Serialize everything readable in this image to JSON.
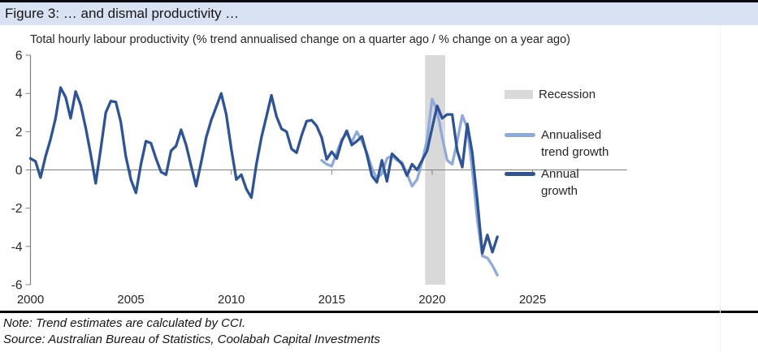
{
  "header": {
    "title": "Figure 3: … and dismal productivity …"
  },
  "notes": {
    "note": "Note: Trend estimates are calculated by CCI.",
    "source": "Source: Australian Bureau of Statistics, Coolabah Capital Investments"
  },
  "colors": {
    "header_bg": "#D9E2F3",
    "rule_black": "#06070f",
    "axis_gray": "#808080",
    "tick_text": "#262626",
    "trend_blue": "#8EAADB",
    "annual_blue": "#2F5496",
    "recession_gray": "#D9D9D9"
  },
  "chart_data": {
    "type": "line",
    "title": "",
    "subtitle": "Total hourly labour productivity (% trend annualised change on a quarter ago / % change on a year ago)",
    "xlabel": "",
    "ylabel": "",
    "ylim": [
      -6,
      6
    ],
    "xlim": [
      2000,
      2029.7
    ],
    "y_ticks": [
      6,
      4,
      2,
      0,
      -2,
      -4,
      -6
    ],
    "x_ticks": [
      2000,
      2005,
      2010,
      2015,
      2020,
      2025
    ],
    "grid": "zero-line-only",
    "recession_band": {
      "start": 2019.65,
      "end": 2020.65,
      "color": "#D9D9D9"
    },
    "legend": {
      "position": "inside-right",
      "items": [
        {
          "label": "Recession",
          "lines": [
            "Recession"
          ],
          "swatch": "band",
          "color": "#D9D9D9"
        },
        {
          "label": "Annualised trend growth",
          "lines": [
            "Annualised",
            "trend growth"
          ],
          "swatch": "line",
          "color": "#8EAADB"
        },
        {
          "label": "Annual growth",
          "lines": [
            "Annual",
            "growth"
          ],
          "swatch": "line",
          "color": "#2F5496"
        }
      ]
    },
    "series": [
      {
        "name": "Annualised trend growth",
        "color": "#8EAADB",
        "points": [
          [
            2014.5,
            0.5
          ],
          [
            2014.75,
            0.3
          ],
          [
            2015.0,
            0.2
          ],
          [
            2015.25,
            0.9
          ],
          [
            2015.5,
            1.6
          ],
          [
            2015.75,
            1.9
          ],
          [
            2016.0,
            1.45
          ],
          [
            2016.25,
            2.0
          ],
          [
            2016.5,
            1.5
          ],
          [
            2016.75,
            0.9
          ],
          [
            2017.0,
            0.1
          ],
          [
            2017.25,
            -0.45
          ],
          [
            2017.5,
            -0.2
          ],
          [
            2017.75,
            0.6
          ],
          [
            2018.0,
            0.75
          ],
          [
            2018.25,
            0.5
          ],
          [
            2018.5,
            0.4
          ],
          [
            2018.75,
            -0.2
          ],
          [
            2019.0,
            -0.85
          ],
          [
            2019.25,
            -0.5
          ],
          [
            2019.5,
            0.4
          ],
          [
            2019.75,
            1.6
          ],
          [
            2020.0,
            3.7
          ],
          [
            2020.25,
            3.1
          ],
          [
            2020.5,
            1.7
          ],
          [
            2020.75,
            0.5
          ],
          [
            2021.0,
            0.3
          ],
          [
            2021.25,
            1.5
          ],
          [
            2021.5,
            2.85
          ],
          [
            2021.75,
            2.2
          ],
          [
            2022.0,
            0.0
          ],
          [
            2022.25,
            -2.6
          ],
          [
            2022.5,
            -4.5
          ],
          [
            2022.75,
            -4.6
          ],
          [
            2023.0,
            -5.0
          ],
          [
            2023.25,
            -5.5
          ]
        ]
      },
      {
        "name": "Annual growth",
        "color": "#2F5496",
        "points": [
          [
            2000.0,
            0.6
          ],
          [
            2000.25,
            0.45
          ],
          [
            2000.5,
            -0.4
          ],
          [
            2000.75,
            0.7
          ],
          [
            2001.0,
            1.6
          ],
          [
            2001.25,
            2.7
          ],
          [
            2001.5,
            4.3
          ],
          [
            2001.75,
            3.8
          ],
          [
            2002.0,
            2.7
          ],
          [
            2002.25,
            4.1
          ],
          [
            2002.5,
            3.4
          ],
          [
            2002.75,
            2.2
          ],
          [
            2003.0,
            0.8
          ],
          [
            2003.25,
            -0.7
          ],
          [
            2003.5,
            1.1
          ],
          [
            2003.75,
            3.0
          ],
          [
            2004.0,
            3.6
          ],
          [
            2004.25,
            3.55
          ],
          [
            2004.5,
            2.5
          ],
          [
            2004.75,
            0.7
          ],
          [
            2005.0,
            -0.5
          ],
          [
            2005.25,
            -1.2
          ],
          [
            2005.5,
            0.3
          ],
          [
            2005.75,
            1.5
          ],
          [
            2006.0,
            1.4
          ],
          [
            2006.25,
            0.6
          ],
          [
            2006.5,
            -0.1
          ],
          [
            2006.75,
            -0.25
          ],
          [
            2007.0,
            1.0
          ],
          [
            2007.25,
            1.25
          ],
          [
            2007.5,
            2.1
          ],
          [
            2007.75,
            1.3
          ],
          [
            2008.0,
            0.2
          ],
          [
            2008.25,
            -0.85
          ],
          [
            2008.5,
            0.4
          ],
          [
            2008.75,
            1.7
          ],
          [
            2009.0,
            2.6
          ],
          [
            2009.25,
            3.3
          ],
          [
            2009.5,
            4.0
          ],
          [
            2009.75,
            2.9
          ],
          [
            2010.0,
            1.1
          ],
          [
            2010.25,
            -0.5
          ],
          [
            2010.5,
            -0.25
          ],
          [
            2010.75,
            -1.0
          ],
          [
            2011.0,
            -1.45
          ],
          [
            2011.25,
            0.3
          ],
          [
            2011.5,
            1.7
          ],
          [
            2011.75,
            2.8
          ],
          [
            2012.0,
            3.9
          ],
          [
            2012.25,
            2.8
          ],
          [
            2012.5,
            2.15
          ],
          [
            2012.75,
            2.0
          ],
          [
            2013.0,
            1.1
          ],
          [
            2013.25,
            0.9
          ],
          [
            2013.5,
            1.8
          ],
          [
            2013.75,
            2.55
          ],
          [
            2014.0,
            2.6
          ],
          [
            2014.25,
            2.3
          ],
          [
            2014.5,
            1.7
          ],
          [
            2014.75,
            0.55
          ],
          [
            2015.0,
            0.95
          ],
          [
            2015.25,
            0.6
          ],
          [
            2015.5,
            1.5
          ],
          [
            2015.75,
            2.05
          ],
          [
            2016.0,
            1.3
          ],
          [
            2016.25,
            1.5
          ],
          [
            2016.5,
            1.75
          ],
          [
            2016.75,
            0.8
          ],
          [
            2017.0,
            -0.3
          ],
          [
            2017.25,
            -0.65
          ],
          [
            2017.5,
            0.5
          ],
          [
            2017.75,
            -0.6
          ],
          [
            2018.0,
            0.85
          ],
          [
            2018.25,
            0.6
          ],
          [
            2018.5,
            0.3
          ],
          [
            2018.75,
            -0.3
          ],
          [
            2019.0,
            0.3
          ],
          [
            2019.25,
            0.0
          ],
          [
            2019.5,
            0.5
          ],
          [
            2019.75,
            1.0
          ],
          [
            2020.0,
            2.2
          ],
          [
            2020.25,
            3.35
          ],
          [
            2020.5,
            2.7
          ],
          [
            2020.75,
            2.9
          ],
          [
            2021.0,
            2.9
          ],
          [
            2021.25,
            1.0
          ],
          [
            2021.5,
            0.15
          ],
          [
            2021.75,
            2.4
          ],
          [
            2022.0,
            0.9
          ],
          [
            2022.25,
            -1.6
          ],
          [
            2022.5,
            -4.35
          ],
          [
            2022.75,
            -3.4
          ],
          [
            2023.0,
            -4.3
          ],
          [
            2023.25,
            -3.5
          ]
        ]
      }
    ]
  }
}
